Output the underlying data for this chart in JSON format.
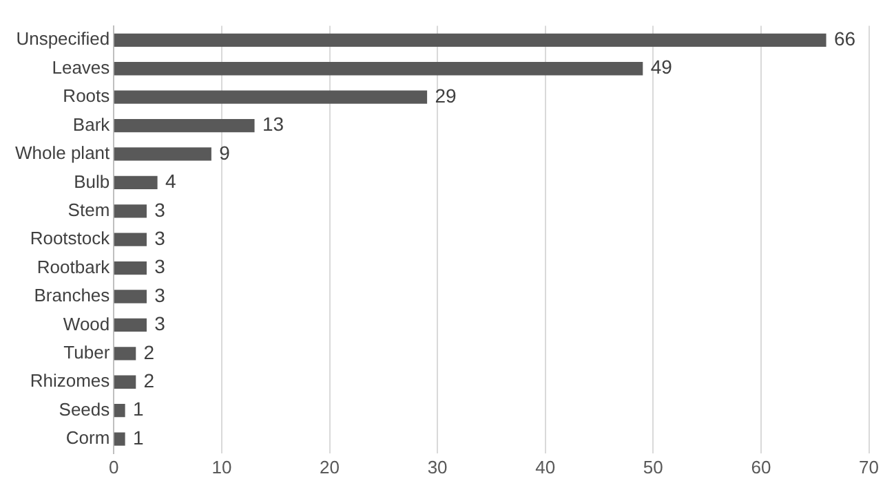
{
  "chart_data": {
    "type": "bar",
    "orientation": "horizontal",
    "categories": [
      "Unspecified",
      "Leaves",
      "Roots",
      "Bark",
      "Whole plant",
      "Bulb",
      "Stem",
      "Rootstock",
      "Rootbark",
      "Branches",
      "Wood",
      "Tuber",
      "Rhizomes",
      "Seeds",
      "Corm"
    ],
    "values": [
      66,
      49,
      29,
      13,
      9,
      4,
      3,
      3,
      3,
      3,
      3,
      2,
      2,
      1,
      1
    ],
    "color": "#595959",
    "xlim": [
      0,
      70
    ],
    "xticks": [
      0,
      10,
      20,
      30,
      40,
      50,
      60,
      70
    ],
    "grid": "x",
    "data_labels": true,
    "legend": false
  }
}
